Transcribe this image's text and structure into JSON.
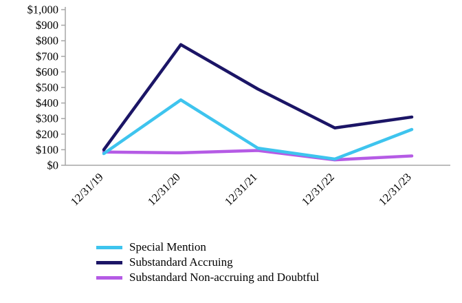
{
  "chart_data": {
    "type": "line",
    "title": "",
    "xlabel": "",
    "ylabel": "",
    "categories": [
      "12/31/19",
      "12/31/20",
      "12/31/21",
      "12/31/22",
      "12/31/23"
    ],
    "series": [
      {
        "name": "Special Mention",
        "color": "#3EC4EE",
        "values": [
          75,
          420,
          110,
          40,
          230
        ]
      },
      {
        "name": "Substandard Accruing",
        "color": "#1B1566",
        "values": [
          100,
          775,
          490,
          240,
          310
        ]
      },
      {
        "name": "Substandard Non-accruing and Doubtful",
        "color": "#B55BE5",
        "values": [
          85,
          80,
          95,
          35,
          60
        ]
      }
    ],
    "ylim": [
      0,
      1000
    ],
    "ytick_step": 100,
    "ytick_labels": [
      "$0",
      "$100",
      "$200",
      "$300",
      "$400",
      "$500",
      "$600",
      "$700",
      "$800",
      "$900",
      "$1,000"
    ],
    "grid": false,
    "legend_position": "bottom-left"
  },
  "style_colors": {
    "axis": "#A6A6A6",
    "tick_text": "#000000"
  }
}
